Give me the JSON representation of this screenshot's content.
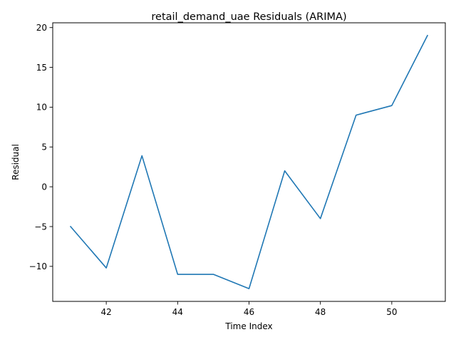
{
  "chart_data": {
    "type": "line",
    "title": "retail_demand_uae Residuals (ARIMA)",
    "xlabel": "Time Index",
    "ylabel": "Residual",
    "x": [
      41,
      42,
      43,
      44,
      45,
      46,
      47,
      48,
      49,
      50,
      51
    ],
    "series": [
      {
        "values": [
          -5.0,
          -10.2,
          3.9,
          -11.0,
          -11.0,
          -12.8,
          2.0,
          -4.0,
          9.0,
          10.2,
          19.0
        ],
        "color": "#1f77b4"
      }
    ],
    "xlim": [
      40.5,
      51.5
    ],
    "ylim": [
      -14.4,
      20.6
    ],
    "xticks": [
      42,
      44,
      46,
      48,
      50
    ],
    "xtick_labels": [
      "42",
      "44",
      "46",
      "48",
      "50"
    ],
    "yticks": [
      -10,
      -5,
      0,
      5,
      10,
      15,
      20
    ],
    "ytick_labels": [
      "−10",
      "−5",
      "0",
      "5",
      "10",
      "15",
      "20"
    ],
    "grid": false,
    "legend": "none"
  }
}
